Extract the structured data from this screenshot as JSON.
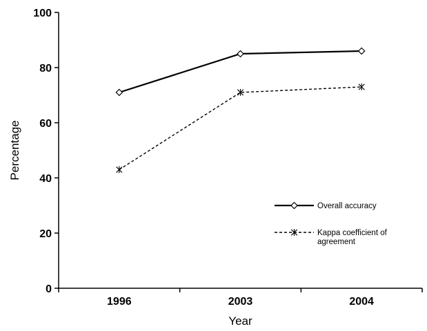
{
  "chart_data": {
    "type": "line",
    "categories": [
      "1996",
      "2003",
      "2004"
    ],
    "xlabel": "Year",
    "ylabel": "Percentage",
    "ylim": [
      0,
      100
    ],
    "yticks": [
      0,
      20,
      40,
      60,
      80,
      100
    ],
    "grid": false,
    "legend_position": "lower-right",
    "series": [
      {
        "name": "Overall accuracy",
        "values": [
          71,
          85,
          86
        ],
        "line_style": "solid",
        "marker": "diamond",
        "color": "#000000"
      },
      {
        "name_lines": [
          "Kappa coefficient of",
          "agreement"
        ],
        "values": [
          43,
          71,
          73
        ],
        "line_style": "dashed",
        "marker": "asterisk",
        "color": "#000000"
      }
    ]
  }
}
